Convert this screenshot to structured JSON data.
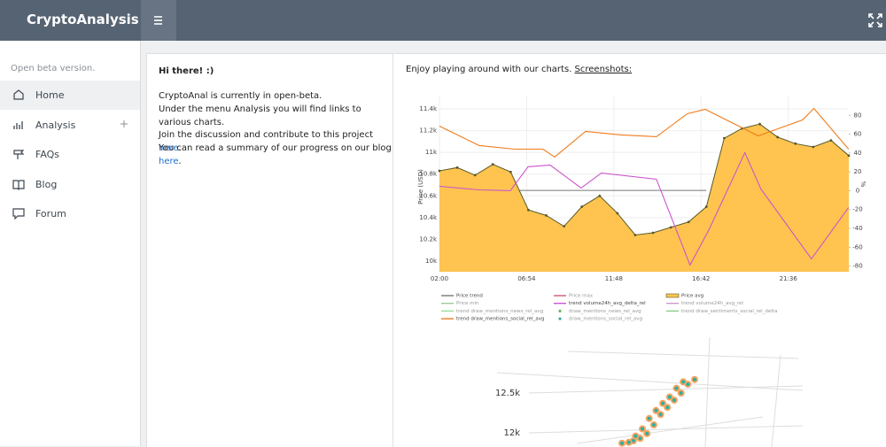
{
  "header": {
    "title": "CryptoAnalysis"
  },
  "sidebar": {
    "note": "Open beta version.",
    "menu": [
      "Home",
      "Analysis",
      "FAQs",
      "Blog",
      "Forum"
    ]
  },
  "intro": {
    "heading": "Hi there! :)",
    "lines": [
      "CryptoAnal is currently in open-beta.",
      "Under the menu Analysis you will find links to various charts."
    ],
    "join": {
      "text": "Join the discussion and contribute to this project",
      "link": "here",
      "end": "."
    },
    "blog": {
      "text": "You can read a summary of our progress on our blog",
      "link": "here",
      "end": "."
    }
  },
  "charts_intro": {
    "text": "Enjoy playing around with our charts.",
    "link": "Screenshots:"
  },
  "chart_data": [
    {
      "type": "line",
      "ylabel": "Price (USD)",
      "y2label": "%",
      "xlim": [
        2,
        25
      ],
      "xticks": [
        {
          "value": 2,
          "label": "02:00"
        },
        {
          "value": 6.9,
          "label": "06:54"
        },
        {
          "value": 11.8,
          "label": "11:48"
        },
        {
          "value": 16.7,
          "label": "16:42"
        },
        {
          "value": 21.6,
          "label": "21:36"
        }
      ],
      "ylim": [
        9902,
        11514
      ],
      "yticks": [
        {
          "value": 10000,
          "label": "10k"
        },
        {
          "value": 10200,
          "label": "10.2k"
        },
        {
          "value": 10400,
          "label": "10.4k"
        },
        {
          "value": 10600,
          "label": "10.6k"
        },
        {
          "value": 10800,
          "label": "10.8k"
        },
        {
          "value": 11000,
          "label": "11k"
        },
        {
          "value": 11200,
          "label": "11.2k"
        },
        {
          "value": 11400,
          "label": "11.4k"
        }
      ],
      "y2lim": [
        -86,
        100
      ],
      "y2ticks": [
        80,
        60,
        40,
        20,
        0,
        -20,
        -40,
        -60,
        -80
      ],
      "grid": true,
      "series": [
        {
          "name": "Price trend",
          "color": "#777777",
          "x": [
            6.5,
            17
          ],
          "values": [
            10650,
            10650
          ]
        },
        {
          "name": "Price max",
          "color": "#c75a7a"
        },
        {
          "name": "Price avg",
          "color": "#fec44f",
          "line_color": "#5a5a2a",
          "fill": true,
          "x": [
            2,
            3,
            4,
            5,
            6,
            7,
            8,
            9,
            10,
            11,
            12,
            13,
            14,
            15,
            16,
            17,
            18,
            19,
            20,
            21,
            22,
            23,
            24,
            25
          ],
          "values": [
            10830,
            10860,
            10790,
            10890,
            10820,
            10470,
            10420,
            10320,
            10500,
            10600,
            10440,
            10240,
            10260,
            10310,
            10360,
            10500,
            11130,
            11220,
            11260,
            11140,
            11080,
            11050,
            11110,
            10970
          ]
        },
        {
          "name": "Price min",
          "color": "#99cc99"
        },
        {
          "name": "trend volume24h_avg_delta_rel",
          "color": "#cc55cc",
          "axis": "y2",
          "x": [
            2,
            4.24,
            5.98,
            6.98,
            8.22,
            9.96,
            11.1,
            14.19,
            16.08,
            17.17,
            19.16,
            20.06,
            22.9,
            24.99
          ],
          "values": [
            4.7,
            0.9,
            0,
            25.4,
            27.2,
            2.8,
            18.8,
            12.2,
            -78.9,
            -40.4,
            40.4,
            1.9,
            -72.3,
            -17.8
          ]
        },
        {
          "name": "trend volume24h_avg_rel",
          "color": "#cc99cc"
        },
        {
          "name": "trend draw_mentions_news_rel_avg",
          "color": "#99dd99"
        },
        {
          "name": "draw_mentions_news_rel_avg",
          "color": "#55aa55",
          "marker": true
        },
        {
          "name": "trend draw_sentiments_social_rel_delta",
          "color": "#88cc88"
        },
        {
          "name": "trend draw_mentions_social_rel_avg",
          "color": "#f07b1a",
          "axis": "y2",
          "x": [
            2,
            4.24,
            6.23,
            7.82,
            8.47,
            10.21,
            12.2,
            14.19,
            15.93,
            16.93,
            19.91,
            22.4,
            23.04,
            24.99
          ],
          "values": [
            68.5,
            47.9,
            44.1,
            44.1,
            35.7,
            62.9,
            59.2,
            57.3,
            81.7,
            86.4,
            58.2,
            75.1,
            87.3,
            44.1
          ]
        },
        {
          "name": "draw_mentions_social_rel_avg",
          "color": "#2aa198",
          "marker": true
        }
      ]
    },
    {
      "type": "scatter3d",
      "zticks": [
        {
          "value": 12500,
          "label": "12.5k"
        },
        {
          "value": 12000,
          "label": "12k"
        }
      ],
      "color": "#2ab0a0",
      "edge_color": "#f4a460",
      "values": [
        11870,
        11900,
        11880,
        11930,
        11960,
        11990,
        12050,
        12100,
        12180,
        12230,
        12280,
        12320,
        12370,
        12410,
        12450,
        12500,
        12560,
        12610,
        12640,
        12670
      ]
    }
  ]
}
